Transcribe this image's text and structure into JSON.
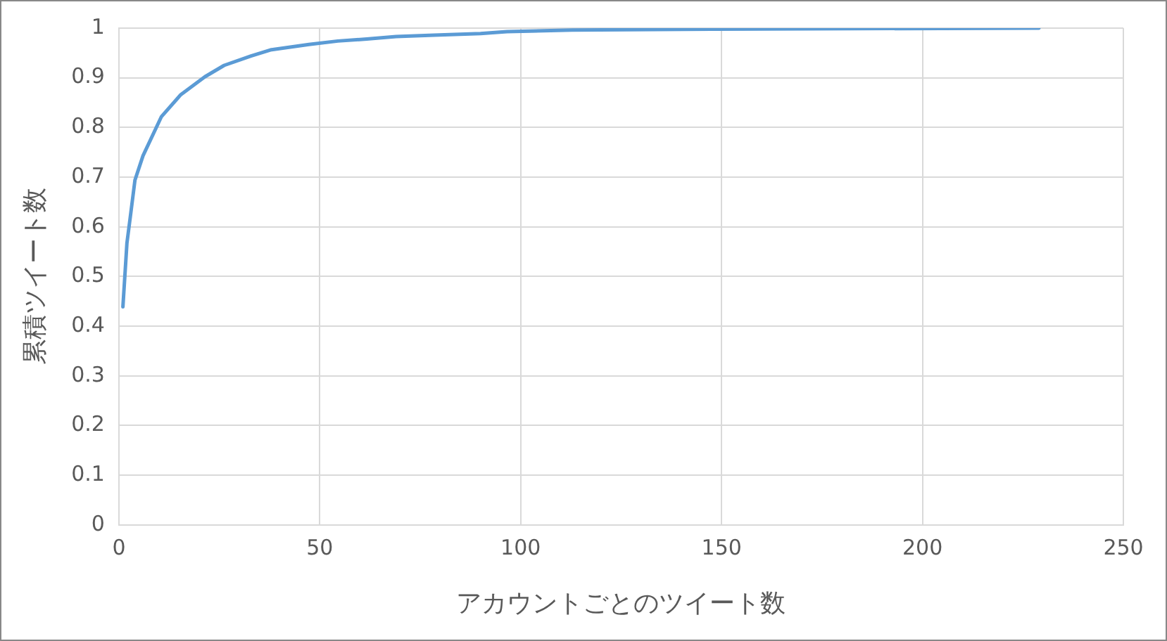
{
  "chart_data": {
    "type": "line",
    "xlabel": "アカウントごとのツイート数",
    "ylabel": "累積ツイート数",
    "series": [
      {
        "color": "#5b9bd5",
        "x": [
          1,
          2,
          3,
          4,
          6,
          10.6,
          15.4,
          21.4,
          26.2,
          32.9,
          37.7,
          47.3,
          54.5,
          61.7,
          69,
          78.5,
          90,
          96.6,
          112.8,
          147.5,
          229
        ],
        "values": [
          0.439,
          0.567,
          0.63,
          0.694,
          0.743,
          0.822,
          0.866,
          0.902,
          0.925,
          0.944,
          0.956,
          0.967,
          0.974,
          0.978,
          0.983,
          0.986,
          0.989,
          0.993,
          0.996,
          0.998,
          1.0
        ]
      }
    ],
    "xlim": [
      0,
      250
    ],
    "xticks": [
      0,
      50,
      100,
      150,
      200,
      250
    ],
    "ylim": [
      0,
      1
    ],
    "yticks": [
      0,
      0.1,
      0.2,
      0.3,
      0.4,
      0.5,
      0.6,
      0.7,
      0.8,
      0.9,
      1
    ],
    "grid": true,
    "legend": false,
    "marker": "none",
    "line_style": "solid"
  }
}
